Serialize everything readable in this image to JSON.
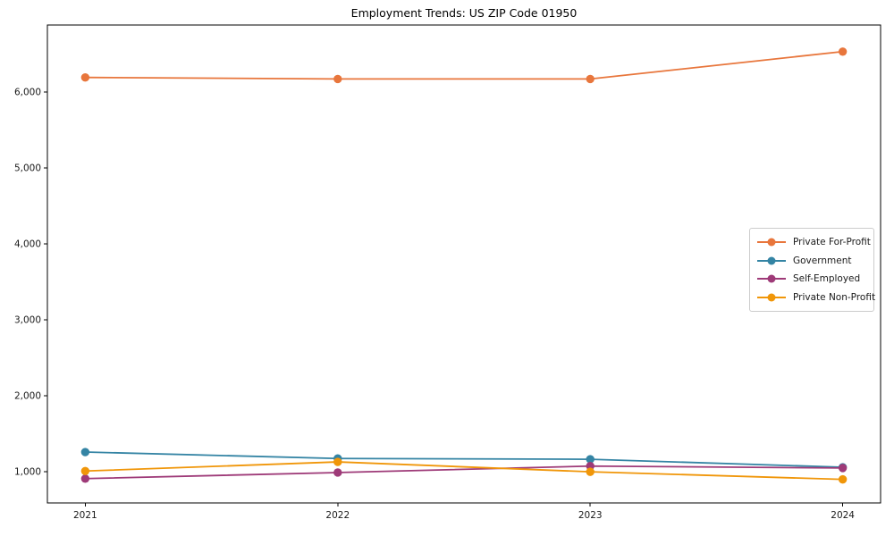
{
  "title": "Employment Trends: US ZIP Code 01950",
  "chart_data": {
    "type": "line",
    "title": "Employment Trends: US ZIP Code 01950",
    "xlabel": "",
    "ylabel": "",
    "x": [
      2021,
      2022,
      2023,
      2024
    ],
    "x_tick_labels": [
      "2021",
      "2022",
      "2023",
      "2024"
    ],
    "y_ticks": [
      1000,
      2000,
      3000,
      4000,
      5000,
      6000
    ],
    "y_tick_labels": [
      "1,000",
      "2,000",
      "3,000",
      "4,000",
      "5,000",
      "6,000"
    ],
    "xlim": [
      2020.85,
      2024.15
    ],
    "ylim": [
      590,
      6880
    ],
    "grid": false,
    "legend_position": "center-right",
    "marker": "circle",
    "series": [
      {
        "name": "Private For-Profit",
        "color": "#E8763C",
        "values": [
          6190,
          6170,
          6170,
          6530
        ]
      },
      {
        "name": "Government",
        "color": "#3484A4",
        "values": [
          1260,
          1175,
          1165,
          1060
        ]
      },
      {
        "name": "Self-Employed",
        "color": "#9E3A78",
        "values": [
          910,
          990,
          1075,
          1050
        ]
      },
      {
        "name": "Private Non-Profit",
        "color": "#F09609",
        "values": [
          1010,
          1130,
          1000,
          900
        ]
      }
    ],
    "axis_color": "#000000",
    "tick_label_color": "#1a1a1a",
    "legend_border_color": "#cccccc"
  }
}
